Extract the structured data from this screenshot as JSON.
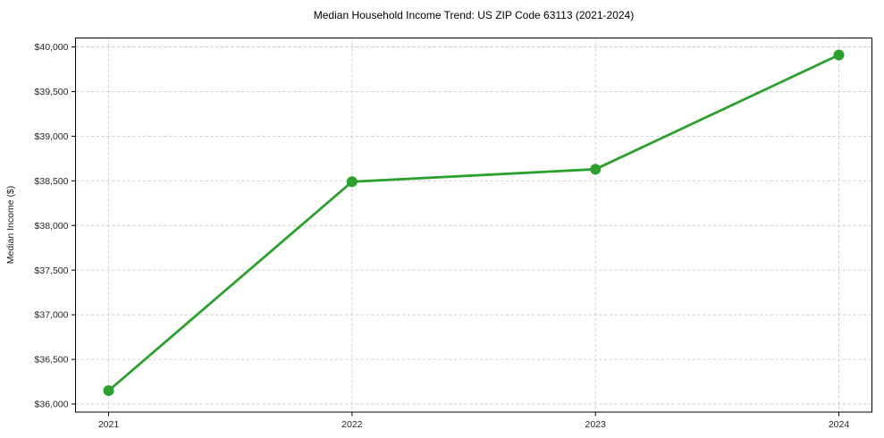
{
  "chart_data": {
    "type": "line",
    "title": "Median Household Income Trend: US ZIP Code 63113 (2021-2024)",
    "xlabel": "",
    "ylabel": "Median Income ($)",
    "categories": [
      "2021",
      "2022",
      "2023",
      "2024"
    ],
    "values": [
      36150,
      38490,
      38630,
      39910
    ],
    "ylim": [
      35910,
      40100
    ],
    "yticks": [
      36000,
      36500,
      37000,
      37500,
      38000,
      38500,
      39000,
      39500,
      40000
    ],
    "ytick_labels": [
      "$36,000",
      "$36,500",
      "$37,000",
      "$37,500",
      "$38,000",
      "$38,500",
      "$39,000",
      "$39,500",
      "$40,000"
    ],
    "line_color": "#2ca02c",
    "marker_color": "#2ca02c",
    "marker_shape": "circle",
    "grid": {
      "show": true,
      "style": "dashed",
      "color": "#cbcbcb"
    },
    "legend": {
      "show": false
    },
    "spine_color": "#000000",
    "background_color": "#ffffff"
  }
}
